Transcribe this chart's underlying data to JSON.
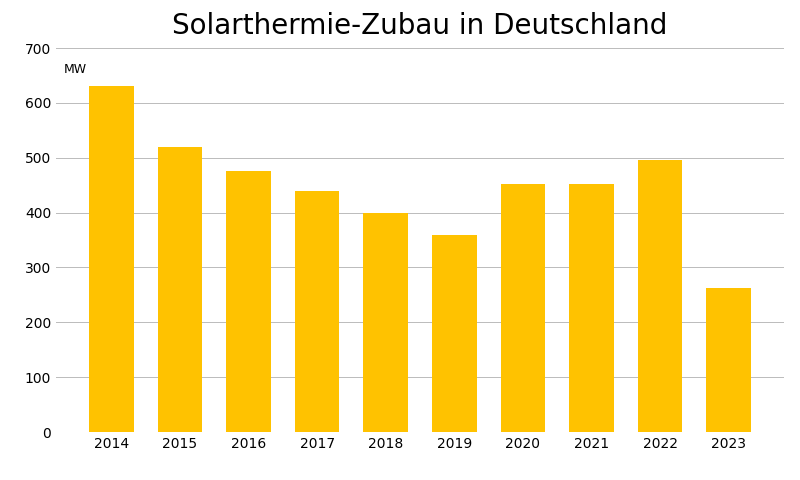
{
  "title": "Solarthermie-Zubau in Deutschland",
  "ylabel_text": "MW",
  "categories": [
    "2014",
    "2015",
    "2016",
    "2017",
    "2018",
    "2019",
    "2020",
    "2021",
    "2022",
    "2023"
  ],
  "values": [
    630,
    520,
    475,
    440,
    400,
    360,
    452,
    452,
    496,
    262
  ],
  "bar_color": "#FFC200",
  "background_color": "#FFFFFF",
  "ylim": [
    0,
    700
  ],
  "yticks": [
    0,
    100,
    200,
    300,
    400,
    500,
    600,
    700
  ],
  "grid_color": "#BBBBBB",
  "title_fontsize": 20,
  "ylabel_fontsize": 9,
  "tick_fontsize": 10,
  "bar_width": 0.65
}
